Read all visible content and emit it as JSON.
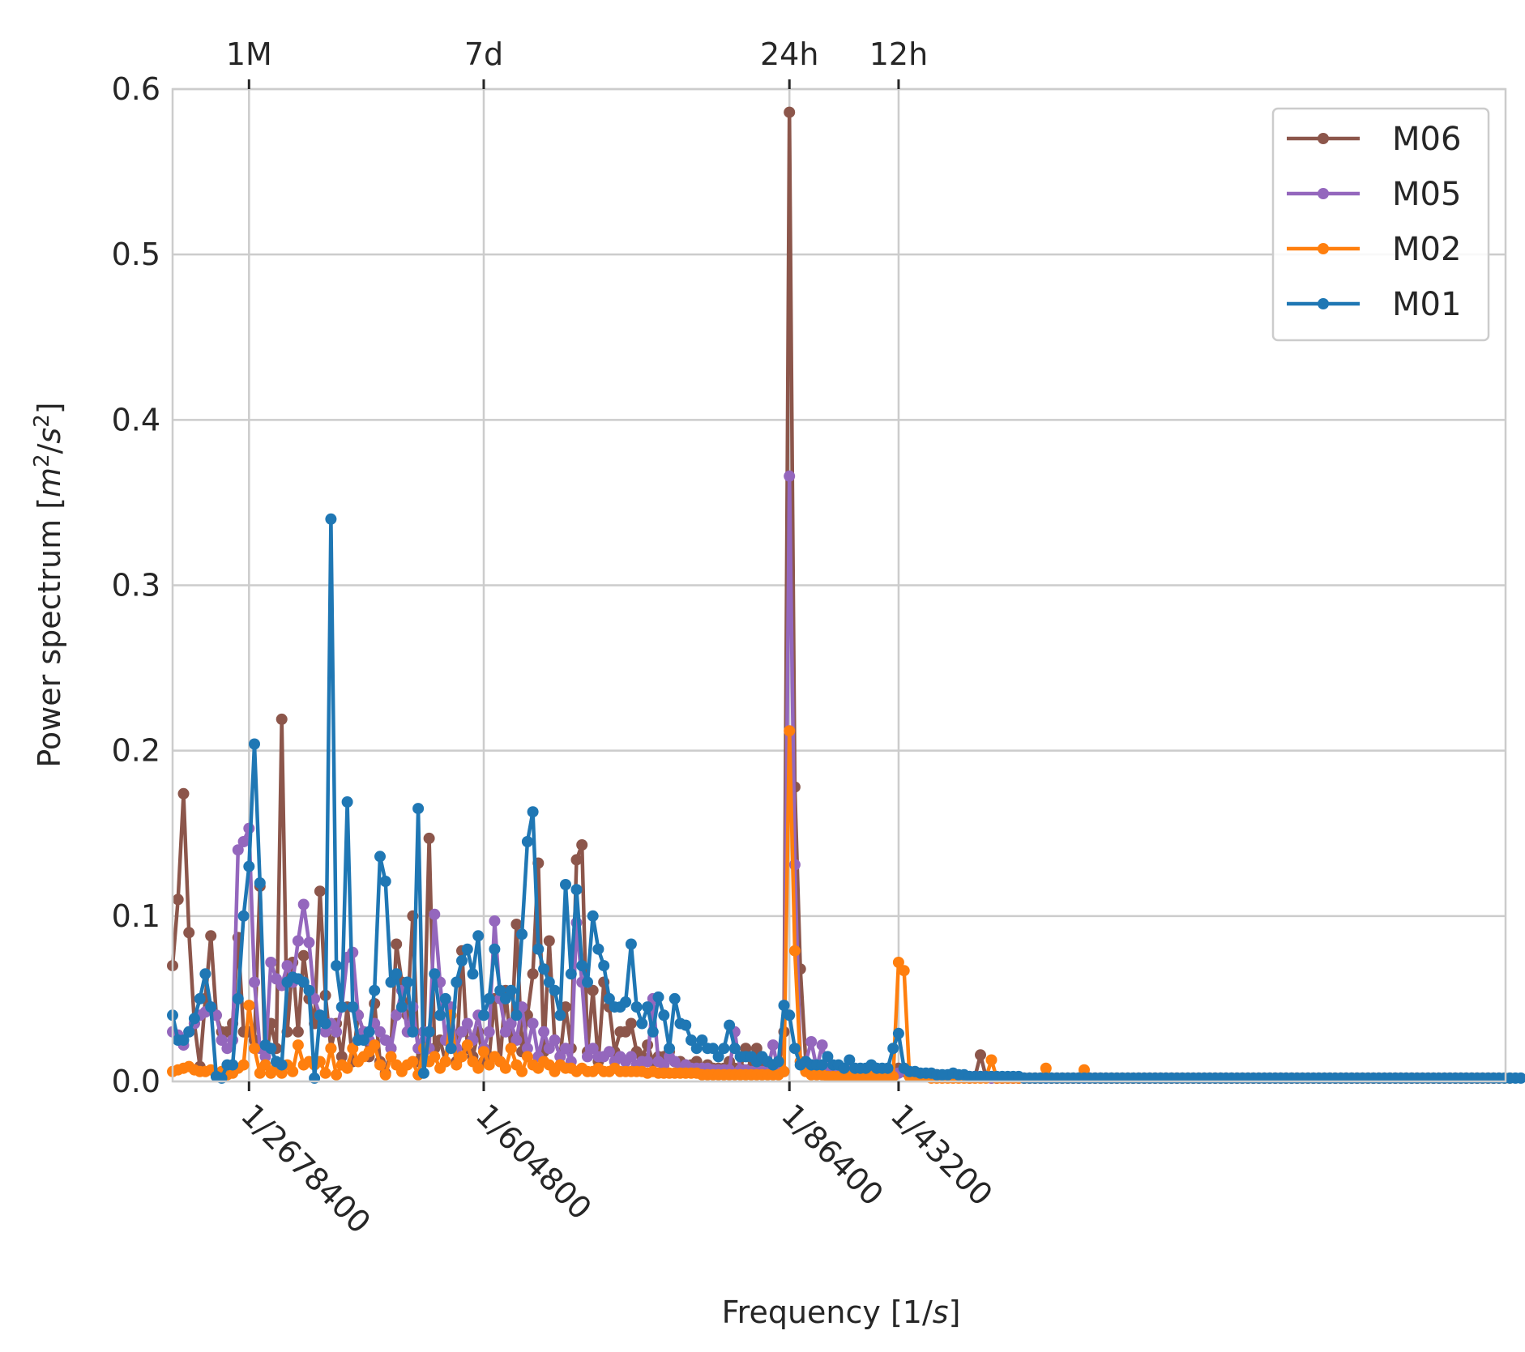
{
  "chart_data": {
    "type": "line",
    "title": "",
    "xlabel_prefix": "Frequency [1/",
    "xlabel_var": "s",
    "xlabel_suffix": "]",
    "ylabel_prefix": "Power spectrum [",
    "ylabel_m": "m",
    "ylabel_exp1": "2",
    "ylabel_slash": "/",
    "ylabel_s": "s",
    "ylabel_exp2": "2",
    "ylabel_suffix": "]",
    "ylim": [
      0,
      0.6
    ],
    "xlim": [
      0,
      239
    ],
    "yticks": [
      "0.0",
      "0.1",
      "0.2",
      "0.3",
      "0.4",
      "0.5",
      "0.6"
    ],
    "xticks": [
      {
        "x": 14,
        "label": "1/2678400"
      },
      {
        "x": 57,
        "label": "1/604800"
      },
      {
        "x": 113,
        "label": "1/86400"
      },
      {
        "x": 133,
        "label": "1/43200"
      }
    ],
    "top_ticks": [
      {
        "x": 14,
        "label": "1M"
      },
      {
        "x": 57,
        "label": "7d"
      },
      {
        "x": 113,
        "label": "24h"
      },
      {
        "x": 133,
        "label": "12h"
      }
    ],
    "grid": true,
    "legend_position": "top-right",
    "legend": [
      "M06",
      "M05",
      "M02",
      "M01"
    ],
    "series": [
      {
        "name": "M06",
        "color": "#8c564b",
        "values": [
          0.07,
          0.11,
          0.174,
          0.09,
          0.035,
          0.009,
          0.05,
          0.088,
          0.04,
          0.03,
          0.03,
          0.035,
          0.087,
          0.03,
          0.03,
          0.025,
          0.118,
          0.01,
          0.035,
          0.02,
          0.219,
          0.03,
          0.072,
          0.03,
          0.076,
          0.05,
          0.035,
          0.115,
          0.052,
          0.02,
          0.035,
          0.015,
          0.045,
          0.012,
          0.04,
          0.03,
          0.015,
          0.047,
          0.012,
          0.005,
          0.02,
          0.083,
          0.06,
          0.04,
          0.1,
          0.012,
          0.018,
          0.147,
          0.02,
          0.025,
          0.012,
          0.03,
          0.012,
          0.079,
          0.02,
          0.015,
          0.03,
          0.012,
          0.015,
          0.05,
          0.012,
          0.055,
          0.02,
          0.095,
          0.018,
          0.04,
          0.065,
          0.132,
          0.018,
          0.085,
          0.025,
          0.015,
          0.045,
          0.02,
          0.134,
          0.143,
          0.018,
          0.055,
          0.012,
          0.06,
          0.045,
          0.018,
          0.03,
          0.03,
          0.035,
          0.018,
          0.015,
          0.022,
          0.012,
          0.015,
          0.015,
          0.018,
          0.012,
          0.012,
          0.01,
          0.01,
          0.012,
          0.008,
          0.01,
          0.008,
          0.008,
          0.008,
          0.012,
          0.008,
          0.008,
          0.02,
          0.008,
          0.02,
          0.008,
          0.008,
          0.008,
          0.008,
          0.03,
          0.586,
          0.178,
          0.068,
          0.012,
          0.01,
          0.008,
          0.007,
          0.007,
          0.006,
          0.007,
          0.006,
          0.006,
          0.006,
          0.006,
          0.005,
          0.006,
          0.005,
          0.005,
          0.005,
          0.005,
          0.008,
          0.006,
          0.004,
          0.004,
          0.004,
          0.004,
          0.003,
          0.004,
          0.003,
          0.003,
          0.003,
          0.003,
          0.003,
          0.002,
          0.003,
          0.016,
          0.003,
          0.002,
          0.002,
          0.002,
          0.002,
          0.002,
          0.002,
          0.002,
          0.002,
          0.002,
          0.002,
          0.002,
          0.002,
          0.002,
          0.002,
          0.002,
          0.002,
          0.002,
          0.002,
          0.002,
          0.002,
          0.002,
          0.002,
          0.002,
          0.002,
          0.002,
          0.002,
          0.002,
          0.002,
          0.002,
          0.002,
          0.002,
          0.002,
          0.002,
          0.002,
          0.002,
          0.002,
          0.002,
          0.002,
          0.002,
          0.002,
          0.002,
          0.002,
          0.002,
          0.002,
          0.002,
          0.002,
          0.002,
          0.002,
          0.002,
          0.002,
          0.002,
          0.002,
          0.002,
          0.002,
          0.002,
          0.002,
          0.002,
          0.002,
          0.002,
          0.002,
          0.002,
          0.002,
          0.002,
          0.002,
          0.002,
          0.002,
          0.002,
          0.002,
          0.002,
          0.002,
          0.002,
          0.002,
          0.002,
          0.002,
          0.002,
          0.002,
          0.002,
          0.002,
          0.002,
          0.002,
          0.002,
          0.002,
          0.002,
          0.002,
          0.002,
          0.002,
          0.002,
          0.002,
          0.002,
          0.002,
          0.002,
          0.002,
          0.002
        ]
      },
      {
        "name": "M05",
        "color": "#9467bd",
        "values": [
          0.03,
          0.028,
          0.022,
          0.03,
          0.035,
          0.04,
          0.042,
          0.045,
          0.04,
          0.025,
          0.02,
          0.025,
          0.14,
          0.145,
          0.153,
          0.06,
          0.02,
          0.015,
          0.072,
          0.062,
          0.058,
          0.07,
          0.06,
          0.085,
          0.107,
          0.084,
          0.05,
          0.04,
          0.03,
          0.035,
          0.03,
          0.045,
          0.075,
          0.078,
          0.04,
          0.03,
          0.025,
          0.035,
          0.03,
          0.025,
          0.02,
          0.04,
          0.055,
          0.03,
          0.045,
          0.02,
          0.03,
          0.02,
          0.101,
          0.06,
          0.025,
          0.045,
          0.02,
          0.03,
          0.035,
          0.025,
          0.04,
          0.02,
          0.03,
          0.097,
          0.05,
          0.03,
          0.035,
          0.025,
          0.045,
          0.02,
          0.035,
          0.015,
          0.03,
          0.02,
          0.025,
          0.015,
          0.02,
          0.012,
          0.096,
          0.06,
          0.015,
          0.02,
          0.015,
          0.015,
          0.018,
          0.012,
          0.015,
          0.012,
          0.015,
          0.01,
          0.012,
          0.012,
          0.05,
          0.012,
          0.01,
          0.015,
          0.012,
          0.008,
          0.01,
          0.008,
          0.008,
          0.008,
          0.008,
          0.007,
          0.007,
          0.007,
          0.007,
          0.03,
          0.007,
          0.007,
          0.006,
          0.006,
          0.006,
          0.006,
          0.022,
          0.006,
          0.006,
          0.366,
          0.131,
          0.012,
          0.012,
          0.024,
          0.008,
          0.022,
          0.007,
          0.007,
          0.006,
          0.006,
          0.006,
          0.006,
          0.005,
          0.005,
          0.005,
          0.005,
          0.005,
          0.005,
          0.005,
          0.005,
          0.008,
          0.004,
          0.004,
          0.004,
          0.004,
          0.003,
          0.003,
          0.003,
          0.003,
          0.003,
          0.003,
          0.003,
          0.003,
          0.003,
          0.003,
          0.003,
          0.002,
          0.002,
          0.002,
          0.002,
          0.002,
          0.002,
          0.002,
          0.002,
          0.002,
          0.002,
          0.002,
          0.002,
          0.002,
          0.002,
          0.002,
          0.002,
          0.002,
          0.002,
          0.002,
          0.002,
          0.002,
          0.002,
          0.002,
          0.002,
          0.002,
          0.002,
          0.002,
          0.002,
          0.002,
          0.002,
          0.002,
          0.002,
          0.002,
          0.002,
          0.002,
          0.002,
          0.002,
          0.002,
          0.002,
          0.002,
          0.002,
          0.002,
          0.002,
          0.002,
          0.002,
          0.002,
          0.002,
          0.002,
          0.002,
          0.002,
          0.002,
          0.002,
          0.002,
          0.002,
          0.002,
          0.002,
          0.002,
          0.002,
          0.002,
          0.002,
          0.002,
          0.002,
          0.002,
          0.002,
          0.002,
          0.002,
          0.002,
          0.002,
          0.002,
          0.002,
          0.002,
          0.002,
          0.002,
          0.002,
          0.002,
          0.002,
          0.002,
          0.002,
          0.002,
          0.002,
          0.002,
          0.002,
          0.002,
          0.002,
          0.002,
          0.002,
          0.002,
          0.002,
          0.002,
          0.002,
          0.002,
          0.002,
          0.002,
          0.002
        ]
      },
      {
        "name": "M02",
        "color": "#ff7f0e",
        "values": [
          0.006,
          0.007,
          0.008,
          0.009,
          0.007,
          0.006,
          0.006,
          0.007,
          0.005,
          0.006,
          0.004,
          0.005,
          0.008,
          0.01,
          0.046,
          0.02,
          0.005,
          0.01,
          0.005,
          0.008,
          0.005,
          0.01,
          0.006,
          0.022,
          0.01,
          0.012,
          0.01,
          0.012,
          0.005,
          0.02,
          0.004,
          0.01,
          0.008,
          0.02,
          0.012,
          0.015,
          0.018,
          0.022,
          0.01,
          0.004,
          0.015,
          0.01,
          0.006,
          0.01,
          0.012,
          0.004,
          0.02,
          0.012,
          0.015,
          0.008,
          0.012,
          0.04,
          0.01,
          0.015,
          0.022,
          0.012,
          0.008,
          0.018,
          0.01,
          0.015,
          0.012,
          0.008,
          0.02,
          0.01,
          0.006,
          0.015,
          0.01,
          0.008,
          0.012,
          0.01,
          0.006,
          0.01,
          0.008,
          0.008,
          0.006,
          0.008,
          0.006,
          0.006,
          0.008,
          0.006,
          0.006,
          0.008,
          0.006,
          0.006,
          0.006,
          0.006,
          0.006,
          0.005,
          0.006,
          0.005,
          0.005,
          0.005,
          0.005,
          0.005,
          0.005,
          0.005,
          0.005,
          0.004,
          0.004,
          0.004,
          0.004,
          0.004,
          0.004,
          0.004,
          0.004,
          0.004,
          0.004,
          0.004,
          0.004,
          0.004,
          0.004,
          0.004,
          0.006,
          0.212,
          0.079,
          0.012,
          0.006,
          0.004,
          0.004,
          0.004,
          0.003,
          0.003,
          0.003,
          0.003,
          0.003,
          0.003,
          0.003,
          0.003,
          0.003,
          0.003,
          0.003,
          0.003,
          0.003,
          0.072,
          0.067,
          0.003,
          0.003,
          0.003,
          0.003,
          0.002,
          0.002,
          0.002,
          0.002,
          0.002,
          0.002,
          0.002,
          0.002,
          0.002,
          0.002,
          0.002,
          0.013,
          0.002,
          0.002,
          0.002,
          0.002,
          0.002,
          0.002,
          0.002,
          0.002,
          0.002,
          0.008,
          0.002,
          0.002,
          0.002,
          0.002,
          0.002,
          0.002,
          0.007,
          0.002,
          0.002,
          0.002,
          0.002,
          0.002,
          0.002,
          0.002,
          0.002,
          0.002,
          0.002,
          0.002,
          0.002,
          0.002,
          0.002,
          0.002,
          0.002,
          0.002,
          0.002,
          0.002,
          0.002,
          0.002,
          0.002,
          0.002,
          0.002,
          0.002,
          0.002,
          0.002,
          0.002,
          0.002,
          0.002,
          0.002,
          0.002,
          0.002,
          0.002,
          0.002,
          0.002,
          0.002,
          0.002,
          0.002,
          0.002,
          0.002,
          0.002,
          0.002,
          0.002,
          0.002,
          0.002,
          0.002,
          0.002,
          0.002,
          0.002,
          0.002,
          0.002,
          0.002,
          0.002,
          0.002,
          0.002,
          0.002,
          0.002,
          0.002,
          0.002,
          0.002,
          0.002,
          0.002,
          0.002,
          0.002,
          0.002,
          0.002,
          0.002,
          0.002,
          0.002,
          0.002,
          0.002,
          0.002,
          0.002,
          0.002,
          0.002,
          0.002,
          0.002
        ]
      },
      {
        "name": "M01",
        "color": "#1f77b4",
        "values": [
          0.04,
          0.025,
          0.025,
          0.03,
          0.038,
          0.05,
          0.065,
          0.045,
          0.003,
          0.002,
          0.01,
          0.01,
          0.05,
          0.1,
          0.13,
          0.204,
          0.12,
          0.022,
          0.02,
          0.012,
          0.01,
          0.06,
          0.063,
          0.062,
          0.06,
          0.055,
          0.002,
          0.04,
          0.035,
          0.34,
          0.07,
          0.045,
          0.169,
          0.045,
          0.025,
          0.025,
          0.03,
          0.055,
          0.136,
          0.121,
          0.06,
          0.065,
          0.045,
          0.06,
          0.03,
          0.165,
          0.005,
          0.03,
          0.065,
          0.04,
          0.05,
          0.02,
          0.06,
          0.073,
          0.08,
          0.065,
          0.088,
          0.04,
          0.05,
          0.08,
          0.055,
          0.05,
          0.055,
          0.04,
          0.089,
          0.145,
          0.163,
          0.08,
          0.068,
          0.06,
          0.055,
          0.04,
          0.119,
          0.065,
          0.116,
          0.07,
          0.06,
          0.1,
          0.08,
          0.07,
          0.05,
          0.045,
          0.045,
          0.048,
          0.083,
          0.045,
          0.035,
          0.045,
          0.03,
          0.051,
          0.04,
          0.02,
          0.05,
          0.035,
          0.034,
          0.025,
          0.02,
          0.025,
          0.02,
          0.02,
          0.015,
          0.02,
          0.034,
          0.02,
          0.015,
          0.015,
          0.015,
          0.012,
          0.015,
          0.012,
          0.01,
          0.012,
          0.046,
          0.04,
          0.02,
          0.01,
          0.012,
          0.01,
          0.01,
          0.01,
          0.015,
          0.01,
          0.01,
          0.008,
          0.013,
          0.008,
          0.008,
          0.008,
          0.01,
          0.008,
          0.008,
          0.008,
          0.02,
          0.029,
          0.008,
          0.006,
          0.006,
          0.005,
          0.005,
          0.005,
          0.004,
          0.004,
          0.004,
          0.005,
          0.004,
          0.004,
          0.003,
          0.003,
          0.003,
          0.003,
          0.003,
          0.003,
          0.003,
          0.003,
          0.003,
          0.003,
          0.002,
          0.002,
          0.002,
          0.002,
          0.002,
          0.002,
          0.002,
          0.002,
          0.002,
          0.002,
          0.002,
          0.002,
          0.002,
          0.002,
          0.002,
          0.002,
          0.002,
          0.002,
          0.002,
          0.002,
          0.002,
          0.002,
          0.002,
          0.002,
          0.002,
          0.002,
          0.002,
          0.002,
          0.002,
          0.002,
          0.002,
          0.002,
          0.002,
          0.002,
          0.002,
          0.002,
          0.002,
          0.002,
          0.002,
          0.002,
          0.002,
          0.002,
          0.002,
          0.002,
          0.002,
          0.002,
          0.002,
          0.002,
          0.002,
          0.002,
          0.002,
          0.002,
          0.002,
          0.002,
          0.002,
          0.002,
          0.002,
          0.002,
          0.002,
          0.002,
          0.002,
          0.002,
          0.002,
          0.002,
          0.002,
          0.002,
          0.002,
          0.002,
          0.002,
          0.002,
          0.002,
          0.002,
          0.002,
          0.002,
          0.002,
          0.002,
          0.002,
          0.002,
          0.002,
          0.002,
          0.002,
          0.002,
          0.002,
          0.002,
          0.002,
          0.002,
          0.002,
          0.002,
          0.002,
          0.002,
          0.002,
          0.002
        ]
      }
    ]
  }
}
